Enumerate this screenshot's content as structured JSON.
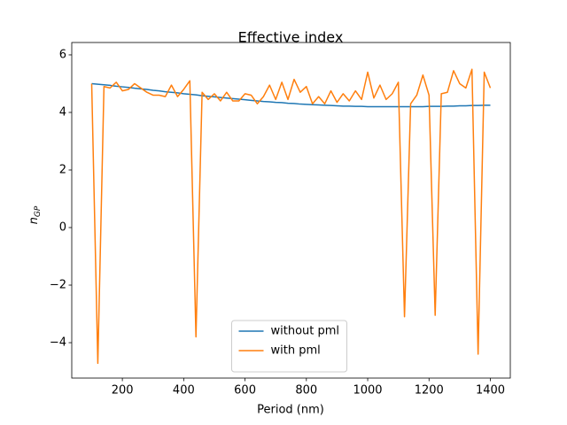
{
  "chart_data": {
    "type": "line",
    "title": "Effective index",
    "xlabel": "Period (nm)",
    "ylabel": "n",
    "ylabel_sub": "GP",
    "x": [
      100,
      120,
      140,
      160,
      180,
      200,
      220,
      240,
      260,
      280,
      300,
      320,
      340,
      360,
      380,
      400,
      420,
      440,
      460,
      480,
      500,
      520,
      540,
      560,
      580,
      600,
      620,
      640,
      660,
      680,
      700,
      720,
      740,
      760,
      780,
      800,
      820,
      840,
      860,
      880,
      900,
      920,
      940,
      960,
      980,
      1000,
      1020,
      1040,
      1060,
      1080,
      1100,
      1120,
      1140,
      1160,
      1180,
      1200,
      1220,
      1240,
      1260,
      1280,
      1300,
      1320,
      1340,
      1360,
      1380,
      1400
    ],
    "series": [
      {
        "name": "without pml",
        "color": "#1f77b4",
        "values": [
          5.0,
          4.98,
          4.96,
          4.94,
          4.91,
          4.89,
          4.87,
          4.84,
          4.82,
          4.8,
          4.77,
          4.75,
          4.72,
          4.7,
          4.68,
          4.65,
          4.63,
          4.61,
          4.58,
          4.56,
          4.54,
          4.52,
          4.5,
          4.48,
          4.46,
          4.44,
          4.42,
          4.4,
          4.38,
          4.37,
          4.35,
          4.34,
          4.32,
          4.31,
          4.29,
          4.28,
          4.27,
          4.26,
          4.25,
          4.24,
          4.23,
          4.22,
          4.22,
          4.21,
          4.21,
          4.2,
          4.2,
          4.2,
          4.2,
          4.2,
          4.2,
          4.2,
          4.2,
          4.2,
          4.2,
          4.21,
          4.21,
          4.21,
          4.22,
          4.22,
          4.23,
          4.23,
          4.24,
          4.24,
          4.25,
          4.25
        ]
      },
      {
        "name": "with pml",
        "color": "#ff7f0e",
        "values": [
          5.0,
          -4.72,
          4.9,
          4.85,
          5.05,
          4.75,
          4.8,
          5.0,
          4.85,
          4.7,
          4.6,
          4.6,
          4.55,
          4.95,
          4.55,
          4.8,
          5.1,
          -3.8,
          4.7,
          4.45,
          4.65,
          4.4,
          4.7,
          4.4,
          4.4,
          4.65,
          4.6,
          4.3,
          4.55,
          4.95,
          4.45,
          5.05,
          4.45,
          5.15,
          4.7,
          4.9,
          4.3,
          4.55,
          4.3,
          4.75,
          4.35,
          4.65,
          4.4,
          4.75,
          4.45,
          5.4,
          4.5,
          4.95,
          4.45,
          4.65,
          5.05,
          -3.1,
          4.3,
          4.6,
          5.3,
          4.6,
          -3.05,
          4.65,
          4.7,
          5.45,
          5.0,
          4.85,
          5.5,
          -4.4,
          5.4,
          4.85
        ]
      }
    ],
    "xlim": [
      35,
      1465
    ],
    "ylim": [
      -5.23,
      6.43
    ],
    "xticks": [
      200,
      400,
      600,
      800,
      1000,
      1200,
      1400
    ],
    "yticks": [
      {
        "value": -4,
        "label": "−4"
      },
      {
        "value": -2,
        "label": "−2"
      },
      0,
      2,
      4,
      6
    ],
    "legend": "lower center"
  }
}
